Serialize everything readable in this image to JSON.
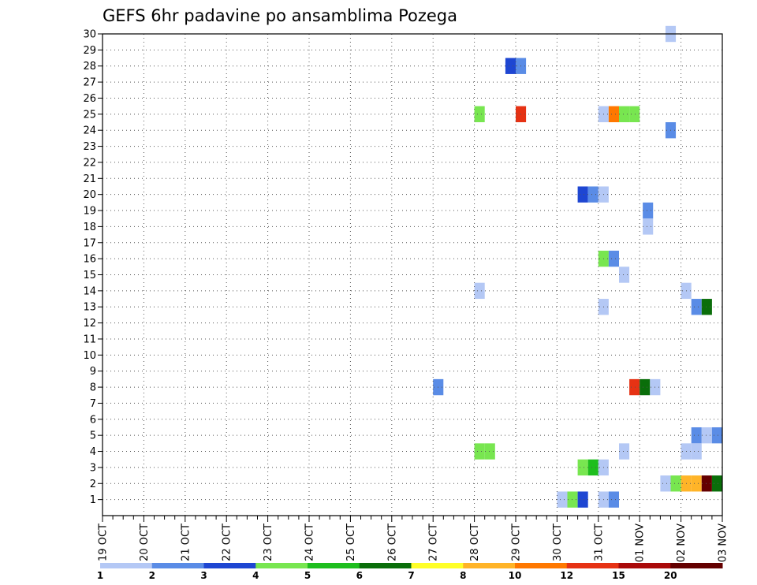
{
  "chart_data": {
    "type": "heatmap",
    "title": "GEFS 6hr padavine po ansamblima Pozega",
    "xlabel": "",
    "ylabel": "",
    "x_tick_labels": [
      "19 OCT",
      "20 OCT",
      "21 OCT",
      "22 OCT",
      "23 OCT",
      "24 OCT",
      "25 OCT",
      "26 OCT",
      "27 OCT",
      "28 OCT",
      "29 OCT",
      "30 OCT",
      "31 OCT",
      "01 NOV",
      "02 NOV",
      "03 NOV"
    ],
    "x_range_steps": [
      0,
      60
    ],
    "y_tick_labels": [
      "1",
      "2",
      "3",
      "4",
      "5",
      "6",
      "7",
      "8",
      "9",
      "10",
      "11",
      "12",
      "13",
      "14",
      "15",
      "16",
      "17",
      "18",
      "19",
      "20",
      "21",
      "22",
      "23",
      "24",
      "25",
      "26",
      "27",
      "28",
      "29",
      "30"
    ],
    "y_range": [
      0,
      30
    ],
    "grid": true,
    "colorbar": {
      "labels": [
        "1",
        "2",
        "3",
        "4",
        "5",
        "6",
        "7",
        "8",
        "10",
        "12",
        "15",
        "20"
      ],
      "colors": [
        "#b4c8f5",
        "#5a8ce6",
        "#1e46d2",
        "#78e650",
        "#1ebe1e",
        "#0a6e0a",
        "#ffff28",
        "#ffb428",
        "#ff7800",
        "#e63214",
        "#aa0a0a",
        "#640000"
      ],
      "placement": "bottom"
    },
    "cells": [
      {
        "step": 55.0,
        "member": 30,
        "color": "#b4c8f5"
      },
      {
        "step": 39.5,
        "member": 28,
        "color": "#1e46d2"
      },
      {
        "step": 40.5,
        "member": 28,
        "color": "#5a8ce6"
      },
      {
        "step": 36.5,
        "member": 25,
        "color": "#78e650"
      },
      {
        "step": 40.5,
        "member": 25,
        "color": "#e63214"
      },
      {
        "step": 48.5,
        "member": 25,
        "color": "#b4c8f5"
      },
      {
        "step": 49.5,
        "member": 25,
        "color": "#ff7800"
      },
      {
        "step": 50.5,
        "member": 25,
        "color": "#78e650"
      },
      {
        "step": 51.5,
        "member": 25,
        "color": "#78e650"
      },
      {
        "step": 55.0,
        "member": 24,
        "color": "#5a8ce6"
      },
      {
        "step": 46.5,
        "member": 20,
        "color": "#1e46d2"
      },
      {
        "step": 47.5,
        "member": 20,
        "color": "#5a8ce6"
      },
      {
        "step": 48.5,
        "member": 20,
        "color": "#b4c8f5"
      },
      {
        "step": 52.8,
        "member": 19,
        "color": "#5a8ce6"
      },
      {
        "step": 52.8,
        "member": 18,
        "color": "#b4c8f5"
      },
      {
        "step": 48.5,
        "member": 16,
        "color": "#78e650"
      },
      {
        "step": 49.5,
        "member": 16,
        "color": "#5a8ce6"
      },
      {
        "step": 50.5,
        "member": 15,
        "color": "#b4c8f5"
      },
      {
        "step": 36.5,
        "member": 14,
        "color": "#b4c8f5"
      },
      {
        "step": 56.5,
        "member": 14,
        "color": "#b4c8f5"
      },
      {
        "step": 48.5,
        "member": 13,
        "color": "#b4c8f5"
      },
      {
        "step": 57.5,
        "member": 13,
        "color": "#5a8ce6"
      },
      {
        "step": 58.5,
        "member": 13,
        "color": "#0a6e0a"
      },
      {
        "step": 32.5,
        "member": 8,
        "color": "#5a8ce6"
      },
      {
        "step": 51.5,
        "member": 8,
        "color": "#e63214"
      },
      {
        "step": 52.5,
        "member": 8,
        "color": "#0a6e0a"
      },
      {
        "step": 53.5,
        "member": 8,
        "color": "#b4c8f5"
      },
      {
        "step": 57.5,
        "member": 5,
        "color": "#5a8ce6"
      },
      {
        "step": 58.5,
        "member": 5,
        "color": "#b4c8f5"
      },
      {
        "step": 59.5,
        "member": 5,
        "color": "#5a8ce6"
      },
      {
        "step": 36.5,
        "member": 4,
        "color": "#78e650"
      },
      {
        "step": 37.5,
        "member": 4,
        "color": "#78e650"
      },
      {
        "step": 50.5,
        "member": 4,
        "color": "#b4c8f5"
      },
      {
        "step": 56.5,
        "member": 4,
        "color": "#b4c8f5"
      },
      {
        "step": 57.5,
        "member": 4,
        "color": "#b4c8f5"
      },
      {
        "step": 46.5,
        "member": 3,
        "color": "#78e650"
      },
      {
        "step": 47.5,
        "member": 3,
        "color": "#1ebe1e"
      },
      {
        "step": 48.5,
        "member": 3,
        "color": "#b4c8f5"
      },
      {
        "step": 54.5,
        "member": 2,
        "color": "#b4c8f5"
      },
      {
        "step": 55.5,
        "member": 2,
        "color": "#78e650"
      },
      {
        "step": 56.5,
        "member": 2,
        "color": "#ffb428"
      },
      {
        "step": 57.5,
        "member": 2,
        "color": "#ffb428"
      },
      {
        "step": 58.5,
        "member": 2,
        "color": "#640000"
      },
      {
        "step": 59.5,
        "member": 2,
        "color": "#0a6e0a"
      },
      {
        "step": 44.5,
        "member": 1,
        "color": "#b4c8f5"
      },
      {
        "step": 45.5,
        "member": 1,
        "color": "#78e650"
      },
      {
        "step": 46.5,
        "member": 1,
        "color": "#1e46d2"
      },
      {
        "step": 48.5,
        "member": 1,
        "color": "#b4c8f5"
      },
      {
        "step": 49.5,
        "member": 1,
        "color": "#5a8ce6"
      }
    ]
  }
}
